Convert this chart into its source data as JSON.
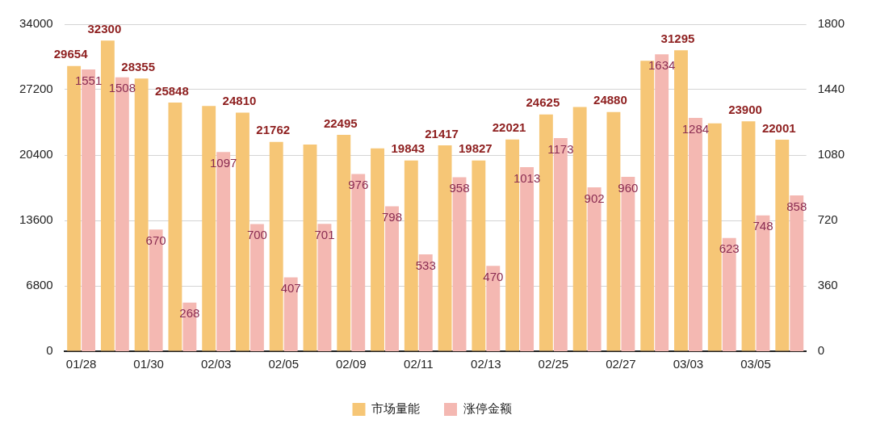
{
  "chart_data": {
    "type": "bar",
    "categories": [
      "01/28",
      null,
      "01/30",
      null,
      "02/03",
      null,
      "02/05",
      null,
      "02/09",
      null,
      "02/11",
      null,
      "02/13",
      null,
      "02/25",
      null,
      "02/27",
      null,
      "03/03",
      null,
      "03/05",
      null
    ],
    "series": [
      {
        "name": "市场量能",
        "color": "#f6c676",
        "values": [
          29654,
          32300,
          28355,
          25848,
          25500,
          24810,
          21762,
          21500,
          22495,
          21100,
          19843,
          21417,
          19827,
          22021,
          24625,
          25400,
          24880,
          30200,
          31295,
          23700,
          23900,
          22001
        ],
        "value_labels": [
          "29654",
          "32300",
          "28355",
          "25848",
          null,
          "24810",
          "21762",
          null,
          "22495",
          null,
          "19843",
          "21417",
          "19827",
          "22021",
          "24625",
          null,
          "24880",
          null,
          "31295",
          null,
          "23900",
          "22001"
        ]
      },
      {
        "name": "涨停金额",
        "color": "#f4b8b2",
        "axis": "y2",
        "values": [
          1551,
          1508,
          670,
          268,
          1097,
          700,
          407,
          701,
          976,
          798,
          533,
          958,
          470,
          1013,
          1173,
          902,
          960,
          1634,
          1284,
          623,
          748,
          858
        ],
        "value_labels": [
          "1551",
          "1508",
          "670",
          "268",
          "1097",
          "700",
          "407",
          "701",
          "976",
          "798",
          "533",
          "958",
          "470",
          "1013",
          "1173",
          "902",
          "960",
          "1634",
          "1284",
          "623",
          "748",
          "858"
        ]
      }
    ],
    "ylim": [
      0,
      34000
    ],
    "yticks": [
      0,
      6800,
      13600,
      20400,
      27200,
      34000
    ],
    "y2lim": [
      0,
      1800
    ],
    "y2ticks": [
      0,
      360,
      720,
      1080,
      1440,
      1800
    ],
    "grid": "y",
    "legend": "bottom"
  }
}
